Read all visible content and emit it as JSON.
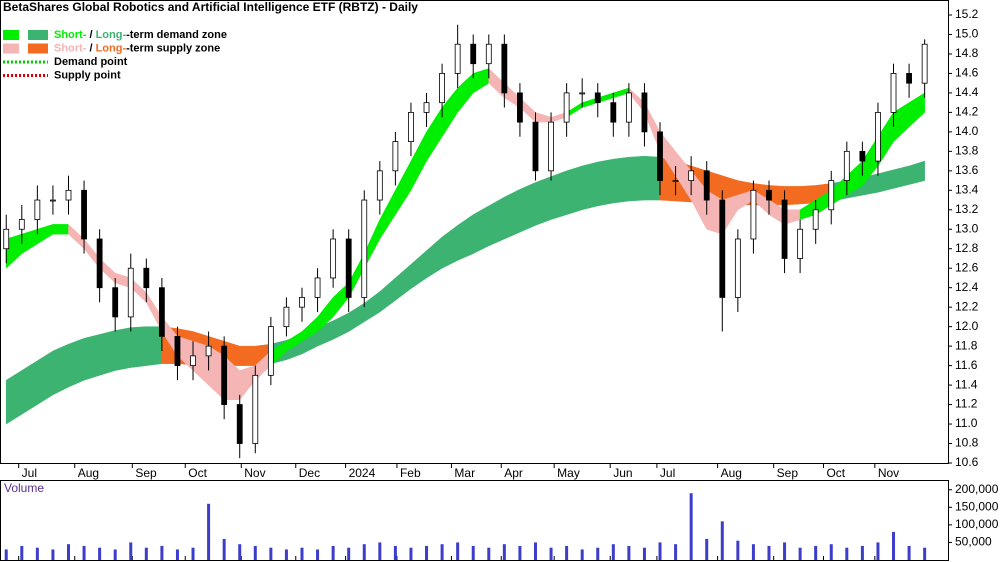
{
  "chart_data": {
    "type": "candlestick",
    "title": "BetaShares Global Robotics and Artificial Intelligence ETF (RBTZ) - Daily",
    "legend": [
      {
        "short": "Short-",
        "sep": " / ",
        "long": "Long-",
        "rest": "-term demand zone",
        "short_color": "#00ee00",
        "long_color": "#3cb371",
        "style": "zone"
      },
      {
        "short": "Short-",
        "sep": " / ",
        "long": "Long-",
        "rest": "-term supply zone",
        "short_color": "#f5b5b5",
        "long_color": "#f26b21",
        "style": "zone"
      },
      {
        "rest": "Demand point",
        "short_color": "#00cc00",
        "style": "dotted"
      },
      {
        "rest": "Supply point",
        "short_color": "#dd0000",
        "style": "dotted"
      }
    ],
    "xlim": [
      -0.4,
      60.5
    ],
    "xticks": [
      {
        "value": 0.8,
        "label": "Jul"
      },
      {
        "value": 4.4,
        "label": "Aug"
      },
      {
        "value": 8.1,
        "label": "Sep"
      },
      {
        "value": 11.5,
        "label": "Oct"
      },
      {
        "value": 15.1,
        "label": "Nov"
      },
      {
        "value": 18.6,
        "label": "Dec"
      },
      {
        "value": 21.8,
        "label": "2024"
      },
      {
        "value": 25.1,
        "label": "Feb"
      },
      {
        "value": 28.6,
        "label": "Mar"
      },
      {
        "value": 31.8,
        "label": "Apr"
      },
      {
        "value": 35.2,
        "label": "May"
      },
      {
        "value": 38.8,
        "label": "Jun"
      },
      {
        "value": 41.8,
        "label": "Jul"
      },
      {
        "value": 45.7,
        "label": "Aug"
      },
      {
        "value": 49.3,
        "label": "Sep"
      },
      {
        "value": 52.5,
        "label": "Oct"
      },
      {
        "value": 55.8,
        "label": "Nov"
      }
    ],
    "ylim": [
      10.6,
      15.2
    ],
    "yticks": [
      10.6,
      10.8,
      {
        "value": 11,
        "label": "11.0"
      },
      11.2,
      11.4,
      11.6,
      11.8,
      {
        "value": 12,
        "label": "12.0"
      },
      12.2,
      12.4,
      12.6,
      12.8,
      {
        "value": 13,
        "label": "13.0"
      },
      13.2,
      13.4,
      13.6,
      13.8,
      {
        "value": 14,
        "label": "14.0"
      },
      14.2,
      14.4,
      14.6,
      14.8,
      {
        "value": 15,
        "label": "15.0"
      },
      15.2
    ],
    "open": [
      12.8,
      13.0,
      13.1,
      13.3,
      13.3,
      13.4,
      12.9,
      12.4,
      12.1,
      12.6,
      12.4,
      11.9,
      11.6,
      11.7,
      11.8,
      11.2,
      10.8,
      11.5,
      12.0,
      12.2,
      12.3,
      12.5,
      12.9,
      12.3,
      13.3,
      13.6,
      13.9,
      14.2,
      14.3,
      14.6,
      14.9,
      14.7,
      14.9,
      14.4,
      14.1,
      13.6,
      14.1,
      14.4,
      14.4,
      14.3,
      14.1,
      14.4,
      14.0,
      13.5,
      13.5,
      13.6,
      13.3,
      12.3,
      12.9,
      13.4,
      13.3,
      12.7,
      13.0,
      13.2,
      13.5,
      13.8,
      13.7,
      14.2,
      14.6,
      14.5
    ],
    "high": [
      13.15,
      13.25,
      13.45,
      13.45,
      13.55,
      13.5,
      13.0,
      12.5,
      12.75,
      12.7,
      12.5,
      12.0,
      11.85,
      11.95,
      11.9,
      11.3,
      11.6,
      12.1,
      12.3,
      12.4,
      12.6,
      13.0,
      13.0,
      13.4,
      13.7,
      14.0,
      14.3,
      14.4,
      14.7,
      15.1,
      15.0,
      15.0,
      15.0,
      14.5,
      14.2,
      14.2,
      14.5,
      14.55,
      14.5,
      14.4,
      14.5,
      14.5,
      14.1,
      13.65,
      13.75,
      13.7,
      13.4,
      13.0,
      13.5,
      13.5,
      13.4,
      13.1,
      13.3,
      13.6,
      13.9,
      13.9,
      14.3,
      14.7,
      14.7,
      14.95
    ],
    "low": [
      12.65,
      12.85,
      12.95,
      13.15,
      13.15,
      12.75,
      12.25,
      11.95,
      11.95,
      12.25,
      11.75,
      11.45,
      11.45,
      11.55,
      11.05,
      10.65,
      10.7,
      11.4,
      11.9,
      12.05,
      12.15,
      12.4,
      12.15,
      12.2,
      13.15,
      13.45,
      13.75,
      14.05,
      14.15,
      14.45,
      14.55,
      14.55,
      14.25,
      13.95,
      13.5,
      13.5,
      13.95,
      14.25,
      14.15,
      13.95,
      13.95,
      13.85,
      13.35,
      13.35,
      13.35,
      13.15,
      11.95,
      12.15,
      12.75,
      13.15,
      12.55,
      12.55,
      12.85,
      13.05,
      13.35,
      13.55,
      13.55,
      14.05,
      14.35,
      14.35
    ],
    "close": [
      13.0,
      13.1,
      13.3,
      13.3,
      13.4,
      12.9,
      12.4,
      12.1,
      12.6,
      12.4,
      11.9,
      11.6,
      11.7,
      11.8,
      11.2,
      10.8,
      11.5,
      12.0,
      12.2,
      12.3,
      12.5,
      12.9,
      12.3,
      13.3,
      13.6,
      13.9,
      14.2,
      14.3,
      14.6,
      14.9,
      14.7,
      14.9,
      14.4,
      14.1,
      13.6,
      14.1,
      14.4,
      14.4,
      14.3,
      14.1,
      14.4,
      14.0,
      13.5,
      13.5,
      13.6,
      13.3,
      12.3,
      12.9,
      13.4,
      13.3,
      12.7,
      13.0,
      13.2,
      13.5,
      13.8,
      13.7,
      14.2,
      14.6,
      14.5,
      14.9
    ],
    "short_zone": {
      "upper": [
        12.9,
        12.95,
        13.0,
        13.05,
        13.05,
        12.9,
        12.7,
        12.55,
        12.5,
        12.35,
        12.1,
        11.9,
        11.85,
        11.8,
        11.7,
        11.55,
        11.6,
        11.75,
        11.85,
        11.95,
        12.1,
        12.3,
        12.45,
        12.75,
        13.1,
        13.4,
        13.7,
        14.0,
        14.25,
        14.45,
        14.6,
        14.65,
        14.5,
        14.35,
        14.2,
        14.15,
        14.2,
        14.3,
        14.35,
        14.4,
        14.45,
        14.3,
        14.0,
        13.8,
        13.6,
        13.4,
        13.3,
        13.35,
        13.4,
        13.3,
        13.2,
        13.2,
        13.3,
        13.4,
        13.55,
        13.7,
        13.95,
        14.2,
        14.3,
        14.4
      ],
      "lower": [
        12.6,
        12.75,
        12.85,
        12.95,
        12.95,
        12.8,
        12.6,
        12.45,
        12.4,
        12.25,
        11.95,
        11.7,
        11.55,
        11.4,
        11.25,
        11.25,
        11.45,
        11.6,
        11.75,
        11.85,
        11.95,
        12.1,
        12.3,
        12.6,
        12.9,
        13.15,
        13.4,
        13.7,
        13.95,
        14.2,
        14.4,
        14.5,
        14.35,
        14.25,
        14.1,
        14.1,
        14.15,
        14.25,
        14.3,
        14.35,
        14.4,
        14.2,
        13.8,
        13.55,
        13.3,
        13.0,
        12.95,
        13.2,
        13.3,
        13.15,
        13.05,
        13.1,
        13.15,
        13.25,
        13.35,
        13.45,
        13.65,
        13.9,
        14.05,
        14.2
      ],
      "segments": [
        [
          0,
          4,
          0
        ],
        [
          4,
          17,
          1
        ],
        [
          17,
          31,
          0
        ],
        [
          31,
          36,
          1
        ],
        [
          36,
          40,
          0
        ],
        [
          40,
          51,
          1
        ],
        [
          51,
          59,
          0
        ]
      ]
    },
    "long_zone": {
      "upper": [
        11.45,
        11.55,
        11.65,
        11.75,
        11.82,
        11.88,
        11.92,
        11.96,
        11.99,
        12.0,
        12.0,
        11.98,
        11.95,
        11.9,
        11.85,
        11.8,
        11.8,
        11.82,
        11.86,
        11.92,
        11.99,
        12.06,
        12.14,
        12.24,
        12.36,
        12.5,
        12.64,
        12.78,
        12.92,
        13.04,
        13.15,
        13.24,
        13.33,
        13.41,
        13.48,
        13.54,
        13.6,
        13.65,
        13.69,
        13.72,
        13.74,
        13.75,
        13.74,
        13.7,
        13.65,
        13.6,
        13.55,
        13.5,
        13.47,
        13.45,
        13.44,
        13.44,
        13.45,
        13.47,
        13.5,
        13.53,
        13.57,
        13.61,
        13.65,
        13.7
      ],
      "lower": [
        11.0,
        11.1,
        11.2,
        11.3,
        11.38,
        11.45,
        11.5,
        11.55,
        11.58,
        11.6,
        11.62,
        11.62,
        11.61,
        11.6,
        11.6,
        11.6,
        11.6,
        11.62,
        11.66,
        11.72,
        11.8,
        11.87,
        11.95,
        12.05,
        12.15,
        12.27,
        12.39,
        12.5,
        12.6,
        12.68,
        12.75,
        12.83,
        12.9,
        12.97,
        13.04,
        13.1,
        13.15,
        13.2,
        13.24,
        13.27,
        13.29,
        13.3,
        13.3,
        13.29,
        13.28,
        13.27,
        13.26,
        13.25,
        13.25,
        13.25,
        13.25,
        13.26,
        13.27,
        13.29,
        13.32,
        13.35,
        13.38,
        13.42,
        13.46,
        13.5
      ],
      "segments": [
        [
          0,
          10,
          0
        ],
        [
          10,
          17,
          1
        ],
        [
          17,
          42,
          0
        ],
        [
          42,
          53,
          1
        ],
        [
          53,
          59,
          0
        ]
      ]
    },
    "volume": {
      "label": "Volume",
      "color": "#3d3dcc",
      "ylim": [
        0,
        222000
      ],
      "yticks": [
        {
          "value": 50000,
          "label": "50,000"
        },
        {
          "value": 100000,
          "label": "100,000"
        },
        {
          "value": 150000,
          "label": "150,000"
        },
        {
          "value": 200000,
          "label": "200,000"
        }
      ],
      "values": [
        30000,
        40000,
        35000,
        30000,
        45000,
        40000,
        35000,
        30000,
        50000,
        35000,
        40000,
        30000,
        35000,
        160000,
        60000,
        45000,
        40000,
        35000,
        30000,
        35000,
        30000,
        40000,
        35000,
        45000,
        50000,
        40000,
        35000,
        40000,
        45000,
        50000,
        40000,
        35000,
        45000,
        40000,
        50000,
        35000,
        40000,
        30000,
        35000,
        45000,
        40000,
        35000,
        50000,
        45000,
        190000,
        60000,
        110000,
        55000,
        45000,
        40000,
        50000,
        35000,
        40000,
        45000,
        35000,
        40000,
        50000,
        80000,
        40000,
        35000
      ]
    }
  }
}
